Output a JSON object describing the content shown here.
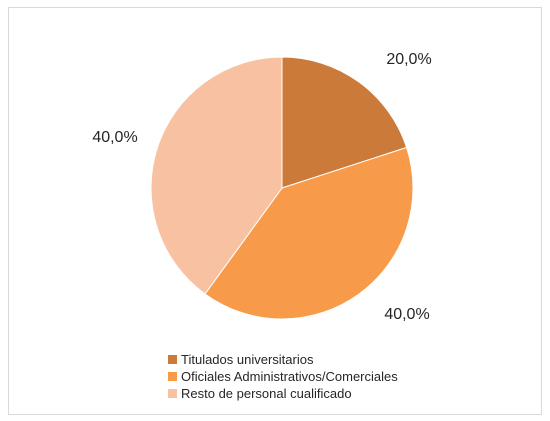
{
  "chart_data": {
    "type": "pie",
    "title": "",
    "start_angle_deg": 0,
    "direction": "clockwise",
    "legend_position": "bottom",
    "slices": [
      {
        "label": "Titulados universitarios",
        "value": 20.0,
        "display": "20,0%",
        "color": "#cc7a3a"
      },
      {
        "label": "Oficiales Administrativos/Comerciales",
        "value": 40.0,
        "display": "40,0%",
        "color": "#f79b4a"
      },
      {
        "label": "Resto de personal cualificado",
        "value": 40.0,
        "display": "40,0%",
        "color": "#f8c2a2"
      }
    ]
  }
}
